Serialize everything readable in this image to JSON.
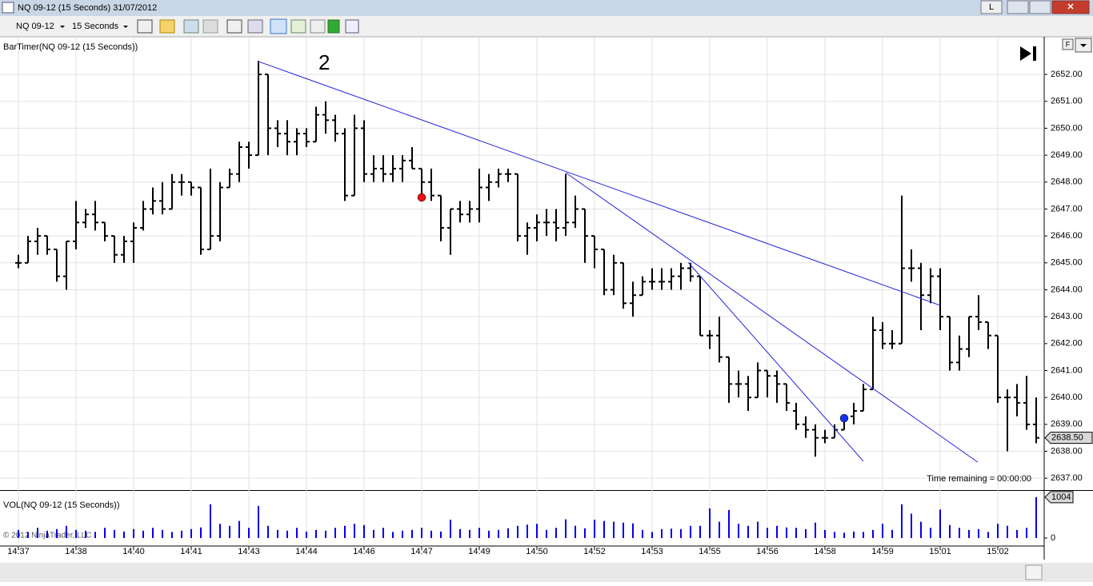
{
  "window": {
    "title": "NQ 09-12 (15 Seconds)  31/07/2012",
    "button": "L"
  },
  "toolbar": {
    "instrument": "NQ 09-12",
    "interval": "15 Seconds"
  },
  "copyright": "© 2012 NinjaTrader, LLC",
  "chart_data": [
    {
      "type": "ohlc",
      "title": "BarTimer(NQ 09-12 (15 Seconds))",
      "annotation": "2",
      "timer_text": "Time remaining = 00:00:00",
      "scale_button": "F",
      "color": "#000000",
      "open": [
        2645.0,
        2645.0,
        2645.8,
        2646.0,
        2645.5,
        2644.5,
        2645.8,
        2646.5,
        2646.8,
        2646.5,
        2646.0,
        2645.3,
        2645.8,
        2646.3,
        2647.0,
        2647.3,
        2647.0,
        2648.0,
        2648.0,
        2647.8,
        2645.5,
        2646.0,
        2647.8,
        2648.3,
        2649.3,
        2649.0,
        2652.0,
        2650.0,
        2649.8,
        2649.5,
        2649.8,
        2649.5,
        2650.5,
        2650.3,
        2649.8,
        2647.5,
        2650.0,
        2648.3,
        2648.5,
        2648.3,
        2648.5,
        2648.8,
        2648.5,
        2648.0,
        2647.5,
        2646.3,
        2647.0,
        2646.8,
        2647.0,
        2647.8,
        2648.0,
        2648.3,
        2648.3,
        2646.0,
        2646.3,
        2646.5,
        2646.5,
        2646.3,
        2646.5,
        2647.0,
        2646.0,
        2645.5,
        2644.0,
        2645.0,
        2643.5,
        2643.8,
        2644.3,
        2644.3,
        2644.3,
        2644.5,
        2644.8,
        2644.5,
        2642.3,
        2642.3,
        2641.5,
        2640.5,
        2640.5,
        2640.0,
        2641.0,
        2640.8,
        2640.5,
        2639.5,
        2639.0,
        2638.8,
        2638.5,
        2638.5,
        2638.8,
        2639.3,
        2639.5,
        2640.3,
        2642.5,
        2642.0,
        2642.0,
        2644.8,
        2644.8,
        2643.8,
        2644.5,
        2643.0,
        2641.3,
        2641.8,
        2643.0,
        2642.8,
        2642.3,
        2640.0,
        2640.0,
        2639.8,
        2639.0
      ],
      "high": [
        2645.3,
        2646.0,
        2646.3,
        2646.0,
        2645.5,
        2645.8,
        2647.3,
        2647.0,
        2647.3,
        2646.5,
        2646.0,
        2646.0,
        2646.5,
        2647.3,
        2647.8,
        2648.0,
        2648.3,
        2648.3,
        2648.0,
        2647.8,
        2648.5,
        2648.0,
        2648.5,
        2649.5,
        2649.5,
        2652.5,
        2652.0,
        2650.3,
        2650.3,
        2650.0,
        2650.0,
        2650.8,
        2651.0,
        2650.5,
        2650.0,
        2650.5,
        2650.3,
        2649.0,
        2649.0,
        2649.0,
        2649.0,
        2649.3,
        2648.5,
        2648.5,
        2647.5,
        2647.0,
        2647.3,
        2647.3,
        2648.5,
        2648.3,
        2648.5,
        2648.5,
        2648.3,
        2646.5,
        2646.8,
        2647.0,
        2647.0,
        2648.3,
        2647.5,
        2647.0,
        2646.0,
        2645.5,
        2645.3,
        2645.0,
        2644.3,
        2644.5,
        2644.8,
        2644.8,
        2644.8,
        2645.0,
        2645.0,
        2644.5,
        2642.5,
        2643.0,
        2641.5,
        2641.0,
        2640.8,
        2641.3,
        2641.0,
        2641.0,
        2640.5,
        2639.8,
        2639.3,
        2639.0,
        2638.8,
        2639.0,
        2639.3,
        2639.8,
        2640.5,
        2643.0,
        2642.8,
        2642.5,
        2647.5,
        2645.5,
        2645.0,
        2644.8,
        2644.8,
        2643.0,
        2642.3,
        2643.0,
        2643.8,
        2642.8,
        2642.3,
        2640.3,
        2640.5,
        2640.8,
        2640.0
      ],
      "low": [
        2644.8,
        2645.0,
        2645.3,
        2645.3,
        2644.3,
        2644.0,
        2645.5,
        2646.3,
        2646.2,
        2645.8,
        2645.0,
        2645.0,
        2645.0,
        2646.2,
        2646.8,
        2646.8,
        2647.0,
        2647.5,
        2647.5,
        2645.3,
        2645.5,
        2645.8,
        2647.8,
        2648.0,
        2648.5,
        2649.0,
        2649.0,
        2649.3,
        2649.0,
        2649.0,
        2649.3,
        2649.5,
        2649.8,
        2649.5,
        2647.3,
        2647.5,
        2648.0,
        2648.0,
        2648.0,
        2648.0,
        2648.0,
        2648.5,
        2647.5,
        2647.3,
        2645.8,
        2645.3,
        2646.5,
        2646.5,
        2646.5,
        2647.3,
        2647.8,
        2648.0,
        2645.8,
        2645.3,
        2645.8,
        2646.0,
        2645.8,
        2646.0,
        2646.3,
        2645.0,
        2644.8,
        2643.8,
        2643.8,
        2643.3,
        2643.0,
        2643.8,
        2644.0,
        2644.0,
        2644.0,
        2644.0,
        2644.3,
        2642.3,
        2641.8,
        2641.3,
        2639.8,
        2640.0,
        2639.5,
        2640.0,
        2640.0,
        2639.8,
        2639.5,
        2638.8,
        2638.5,
        2637.8,
        2638.3,
        2638.5,
        2638.8,
        2639.0,
        2639.5,
        2640.3,
        2641.8,
        2641.8,
        2642.0,
        2644.3,
        2642.5,
        2643.5,
        2642.5,
        2641.0,
        2641.0,
        2641.5,
        2642.5,
        2641.8,
        2639.8,
        2638.0,
        2639.3,
        2638.8,
        2638.3
      ],
      "close": [
        2645.0,
        2645.8,
        2646.0,
        2645.5,
        2644.5,
        2645.8,
        2646.5,
        2646.8,
        2646.5,
        2646.0,
        2645.3,
        2645.8,
        2646.3,
        2647.0,
        2647.3,
        2647.0,
        2648.0,
        2648.0,
        2647.8,
        2645.5,
        2646.0,
        2647.8,
        2648.3,
        2649.3,
        2649.0,
        2652.0,
        2650.0,
        2649.8,
        2649.5,
        2649.8,
        2649.5,
        2650.5,
        2650.3,
        2649.8,
        2647.5,
        2650.0,
        2648.3,
        2648.5,
        2648.3,
        2648.5,
        2648.8,
        2648.5,
        2648.0,
        2647.5,
        2646.3,
        2647.0,
        2646.8,
        2647.0,
        2647.8,
        2648.0,
        2648.3,
        2648.3,
        2646.0,
        2646.3,
        2646.5,
        2646.5,
        2646.3,
        2646.5,
        2647.0,
        2646.0,
        2645.5,
        2644.0,
        2645.0,
        2643.5,
        2643.8,
        2644.3,
        2644.3,
        2644.3,
        2644.5,
        2644.8,
        2644.5,
        2642.3,
        2642.3,
        2641.5,
        2640.5,
        2640.5,
        2640.0,
        2641.0,
        2640.8,
        2640.5,
        2639.8,
        2639.0,
        2638.8,
        2638.5,
        2638.5,
        2638.8,
        2639.3,
        2639.5,
        2640.3,
        2642.5,
        2642.0,
        2642.0,
        2644.8,
        2644.8,
        2643.8,
        2644.5,
        2643.0,
        2641.3,
        2641.8,
        2643.0,
        2642.8,
        2642.3,
        2640.0,
        2640.0,
        2639.8,
        2639.0,
        2638.5
      ],
      "last_label": "2638.50",
      "time_labels": [
        "14:37",
        "14:38",
        "14:40",
        "14:41",
        "14:43",
        "14:44",
        "14:46",
        "14:47",
        "14:49",
        "14:50",
        "14:52",
        "14:53",
        "14:55",
        "14:56",
        "14:58",
        "14:59",
        "15:01",
        "15:02"
      ],
      "ylim": [
        2636.56,
        2653.22
      ],
      "yticks": [
        {
          "value": 2637,
          "label": "2637.00"
        },
        {
          "value": 2638,
          "label": "2638.00"
        },
        {
          "value": 2639,
          "label": "2639.00"
        },
        {
          "value": 2640,
          "label": "2640.00"
        },
        {
          "value": 2641,
          "label": "2641.00"
        },
        {
          "value": 2642,
          "label": "2642.00"
        },
        {
          "value": 2643,
          "label": "2643.00"
        },
        {
          "value": 2644,
          "label": "2644.00"
        },
        {
          "value": 2645,
          "label": "2645.00"
        },
        {
          "value": 2646,
          "label": "2646.00"
        },
        {
          "value": 2647,
          "label": "2647.00"
        },
        {
          "value": 2648,
          "label": "2648.00"
        },
        {
          "value": 2649,
          "label": "2649.00"
        },
        {
          "value": 2650,
          "label": "2650.00"
        },
        {
          "value": 2651,
          "label": "2651.00"
        },
        {
          "value": 2652,
          "label": "2652.00"
        }
      ],
      "grid": true,
      "trendlines": [
        {
          "x0": 25,
          "y0": 2652.48,
          "x1": 96,
          "y1": 2643.42,
          "color": "#2222dd"
        },
        {
          "x0": 57,
          "y0": 2648.35,
          "x1": 99.9,
          "y1": 2637.6,
          "color": "#2222dd"
        },
        {
          "x0": 69.75,
          "y0": 2645.02,
          "x1": 88,
          "y1": 2637.63,
          "color": "#2222dd"
        }
      ],
      "markers": [
        {
          "x": 42,
          "y": 2647.43,
          "color": "#ee1111"
        },
        {
          "x": 86,
          "y": 2639.23,
          "color": "#1133ee"
        }
      ]
    },
    {
      "type": "bar",
      "title": "VOL(NQ 09-12 (15 Seconds))",
      "color": "#0000ee",
      "values": [
        200,
        150,
        250,
        180,
        220,
        300,
        200,
        180,
        150,
        250,
        200,
        160,
        220,
        180,
        250,
        200,
        150,
        180,
        220,
        260,
        830,
        350,
        300,
        420,
        250,
        790,
        300,
        200,
        180,
        250,
        160,
        200,
        180,
        250,
        300,
        350,
        320,
        200,
        250,
        150,
        180,
        200,
        250,
        180,
        160,
        450,
        220,
        200,
        250,
        180,
        200,
        240,
        300,
        330,
        350,
        200,
        250,
        460,
        300,
        240,
        450,
        420,
        400,
        380,
        360,
        200,
        150,
        220,
        230,
        220,
        300,
        300,
        730,
        400,
        690,
        350,
        300,
        400,
        250,
        300,
        260,
        250,
        220,
        380,
        200,
        150,
        130,
        160,
        150,
        200,
        350,
        200,
        830,
        600,
        400,
        250,
        700,
        320,
        250,
        200,
        220,
        150,
        350,
        300,
        200,
        250,
        1004
      ],
      "last_label": "1004",
      "ylim": [
        0,
        1160
      ],
      "yticks": [
        0
      ]
    }
  ]
}
